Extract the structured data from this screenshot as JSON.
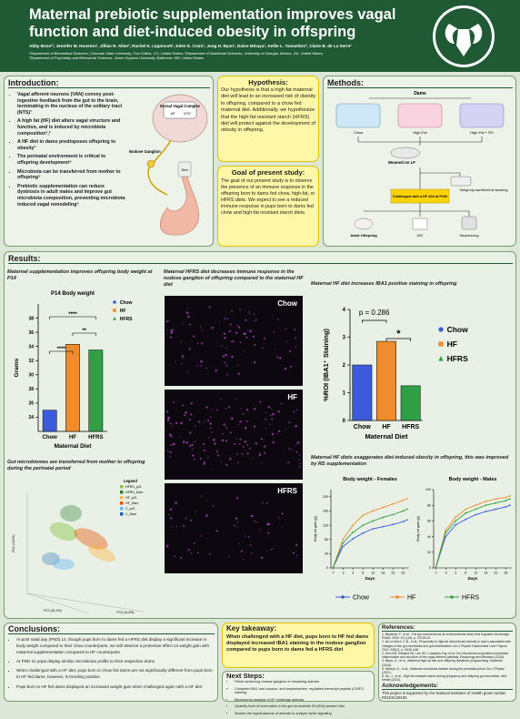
{
  "header": {
    "title": "Maternal prebiotic supplementation improves vagal function and diet-induced obesity in offspring",
    "authors": "Abby Bose¹², Jennifer M. Houston¹, Jillian R. Allen³, Rachel E. Lippincott¹, Eden E. Crain¹, Jung H. Byun¹, Dulce Minaya¹, Kellie L. Tamashiro³, Claire B. de La Serre¹",
    "affiliations": [
      "¹Department of Biomedical Sciences, Colorado State University, Fort Collins, CO, United States; ²Department of Nutritional Sciences, University of Georgia, Athens, GA, United States;",
      "³Department of Psychiatry and Behavioral Sciences, Johns Hopkins University, Baltimore, MD, United States"
    ]
  },
  "intro": {
    "heading": "Introduction:",
    "bullets": [
      "Vagal afferent neurons (VAN) convey post-ingestive feedback from the gut to the brain, terminating in the nucleus of the solitary tract (NTS)¹",
      "A high fat (HF) diet alters vagal structure and function, and is induced by microbiota composition¹,²",
      "A HF diet in dams predisposes offspring to obesity³",
      "The perinatal environment is critical to offspring development⁴",
      "Microbiota can be transferred from mother to offspring⁵",
      "Prebiotic supplementation can reduce dysbiosis in adult males and improve gut microbiota composition, preventing microbiota induced vagal remodeling⁶"
    ],
    "figure": {
      "dvc": "Dorsal Vagal Complex",
      "ap": "AP",
      "nts": "NTS",
      "nodose": "Nodose Ganglion",
      "diet": "Diet"
    }
  },
  "hypothesis": {
    "heading": "Hypothesis:",
    "text": "Our hypothesis is that a high-fat maternal diet will lead to an increased risk of obesity in offspring, compared to a chow fed maternal diet. Additionally, we hypothesize that the high-fat resistant starch (HFRS) diet will protect against the development of obesity in offspring."
  },
  "goal": {
    "heading": "Goal of present study:",
    "text": "The goal of our present study is to observe the presence of an immune response in the offspring born to dams fed chow, high-fat, or HFRS diets. We expect to see a reduced immune response in pups born to dams fed chow and high-fat resistant starch diets."
  },
  "methods": {
    "heading": "Methods:",
    "dams": "Dams",
    "groups": [
      "Chow",
      "High-Fat",
      "High-Fat + RS"
    ],
    "weaned": "Weaned on LF",
    "subgroup": "Subgroup sacrificed at weaning",
    "challenge": "Challenged with a HF diet at P100",
    "adult": "Adult Offspring",
    "ihc": "IHC",
    "seq": "Sequencing"
  },
  "results": {
    "heading": "Results:",
    "p14": {
      "type": "bar",
      "caption": "Maternal supplementation improves offspring body weight at P14",
      "title": "P14 Body weight",
      "ylabel": "Grams",
      "xlabel": "Maternal Diet",
      "categories": [
        "Chow",
        "HF",
        "HFRS"
      ],
      "values": [
        25,
        34.3,
        33.5
      ],
      "colors": [
        "#3b5bdb",
        "#f08c2b",
        "#2f9e44"
      ],
      "ylim": [
        22,
        40
      ],
      "yticks": [
        24,
        26,
        28,
        30,
        32,
        34,
        36,
        38
      ],
      "annotations": [
        "****",
        "**",
        "****"
      ],
      "legend": [
        "Chow",
        "HF",
        "HFRS"
      ]
    },
    "pca": {
      "caption": "Gut microbiomes are transferred from mother to offspring during the perinatal period",
      "legend_title": "Legend",
      "legend": [
        "HFRS_p21",
        "HFRS_Dam",
        "HF_p21",
        "HF_Dam",
        "C_p21",
        "C_Dam"
      ],
      "colors": [
        "#8bc34a",
        "#2e7d32",
        "#ffb74d",
        "#e65100",
        "#64b5f6",
        "#1565c0"
      ],
      "xlabel": "PC1 (31.0%)",
      "ylabel": "PC2 (14.5%)",
      "zlabel": "PC3 (11.8%)"
    },
    "ihc": {
      "caption": "Maternal HFRS diet decreases immune response in the nodose ganglion of offspring compared to the maternal HF diet",
      "panels": [
        "Chow",
        "HF",
        "HFRS"
      ]
    },
    "iba1": {
      "type": "bar",
      "caption": "Maternal HF diet increases IBA1 positive staining in offspring",
      "ylabel": "%ROI (IBA1⁺ Staining)",
      "xlabel": "Maternal Diet",
      "categories": [
        "Chow",
        "HF",
        "HFRS"
      ],
      "values": [
        2.0,
        2.85,
        1.25
      ],
      "colors": [
        "#3b5bdb",
        "#f08c2b",
        "#2f9e44"
      ],
      "ylim": [
        0,
        4
      ],
      "yticks": [
        0,
        1,
        2,
        3,
        4
      ],
      "annotations": [
        "p = 0.286",
        "*"
      ],
      "legend": [
        "Chow",
        "HF",
        "HFRS"
      ]
    },
    "bw_caption": "Maternal HF diets exaggerates diet-induced obesity in offspring, this was improved by RS supplementation",
    "bw_females": {
      "type": "line",
      "title": "Body weight - Females",
      "ylabel": "Body wt gain (g)",
      "xlabel": "Days",
      "x": [
        -7,
        -2,
        3,
        8,
        13,
        18,
        23,
        28,
        30
      ],
      "xlim": [
        -8,
        31
      ],
      "xticks": [
        -7,
        -2,
        3,
        8,
        13,
        18,
        23,
        28
      ],
      "ylim": [
        0,
        220
      ],
      "yticks": [
        0,
        40,
        80,
        120,
        160,
        200
      ],
      "series": [
        {
          "name": "Chow",
          "color": "#3b5bdb",
          "values": [
            0,
            60,
            82,
            98,
            110,
            116,
            122,
            130,
            135
          ]
        },
        {
          "name": "HF",
          "color": "#f08c2b",
          "values": [
            0,
            80,
            120,
            148,
            160,
            170,
            180,
            190,
            195
          ]
        },
        {
          "name": "HFRS",
          "color": "#2f9e44",
          "values": [
            0,
            70,
            100,
            120,
            132,
            142,
            150,
            160,
            165
          ]
        }
      ]
    },
    "bw_males": {
      "type": "line",
      "title": "Body weight - Males",
      "ylabel": "Body wt gain (g)",
      "xlabel": "Days",
      "x": [
        -7,
        -2,
        3,
        8,
        13,
        18,
        23,
        28,
        30
      ],
      "xlim": [
        -8,
        31
      ],
      "xticks": [
        -7,
        -2,
        3,
        8,
        13,
        18,
        23,
        28
      ],
      "ylim": [
        0,
        100
      ],
      "yticks": [
        0,
        20,
        40,
        60,
        80,
        100
      ],
      "series": [
        {
          "color": "#3b5bdb",
          "values": [
            0,
            40,
            55,
            62,
            68,
            72,
            75,
            78,
            80
          ]
        },
        {
          "color": "#f08c2b",
          "values": [
            0,
            48,
            65,
            75,
            80,
            85,
            88,
            90,
            92
          ]
        },
        {
          "color": "#2f9e44",
          "values": [
            0,
            45,
            60,
            70,
            75,
            80,
            83,
            86,
            88
          ]
        }
      ]
    }
  },
  "conclusions": {
    "heading": "Conclusions:",
    "bullets": [
      "At post natal day (PND) 14, though pups born to dams fed a HFRS diet display a significant increase in body weight compared to their chow counterparts, we still observe a protective effect on weight gain with maternal supplementation compared to HF counterparts",
      "At PND 21 pups display similar microbiome profile to their respective dams",
      "When challenged with a HF diet, pups born to chow fed dams are not significantly different from pups born to HF fed dams, however, is trending positive",
      "Pups born to HF fed dams displayed an increased weight gain when challenged again with a HF diet"
    ]
  },
  "takeaway": {
    "heading": "Key takeaway:",
    "text": "When challenged with a HF diet, pups born to HF fed dams displayed increased IBA1 staining in the nodose ganglion compared to pups born to dams fed a HFRS diet"
  },
  "next_steps": {
    "heading": "Next Steps:",
    "bullets": [
      "Finish sectioning nodose ganglion of remaining animals",
      "Complete IBA1 and cocaine- and amphetamine- regulated transcript peptide (CART) staining",
      "Microbiome analysis of HF challenge animals",
      "Quantify level of innervation in the gut via isolectin B4 (IB4) western blot",
      "Section the hypothalamus of animals to analyze leptin signaling"
    ]
  },
  "references": {
    "heading": "References:",
    "items": [
      "1. Backhed, F., et al., The gut microbiota as an environmental factor that regulates fat storage. PNAS, 2004. 101 (44): p. 15718-23.",
      "2. de La Serre, C.B., et al., Propensity to high-fat diet-induced obesity in rats is associated with changes in the gut microbiota and gut inflammation. Am J Physiol Gastrointest Liver Physiol, 2010. 299(2): p. G440-448.",
      "3. Kim DW, Kirkland FA, Lee SH, Cuadrilan-Fay, et al. Gut microbiota composition modulates inflammation and structure of the vagal afferent pathway. Physiology and Behavior (2020).",
      "4. Bleys, D., et al., Maternal high-fat diet and offspring metabolic programming. Nutrients (2018).",
      "5. Minaya, D., et al., Maternal microbiota transfer during the perinatal period. Am J Physiol (2021).",
      "6. Hu, J., et al., High fat resistant starch during pregnancy and offspring gut microbiota. Nutr Metab (2022)."
    ],
    "ack_heading": "Acknowledgements:",
    "ack": "This project is supported by the National Institutes of Health grant number R01DK128193"
  }
}
